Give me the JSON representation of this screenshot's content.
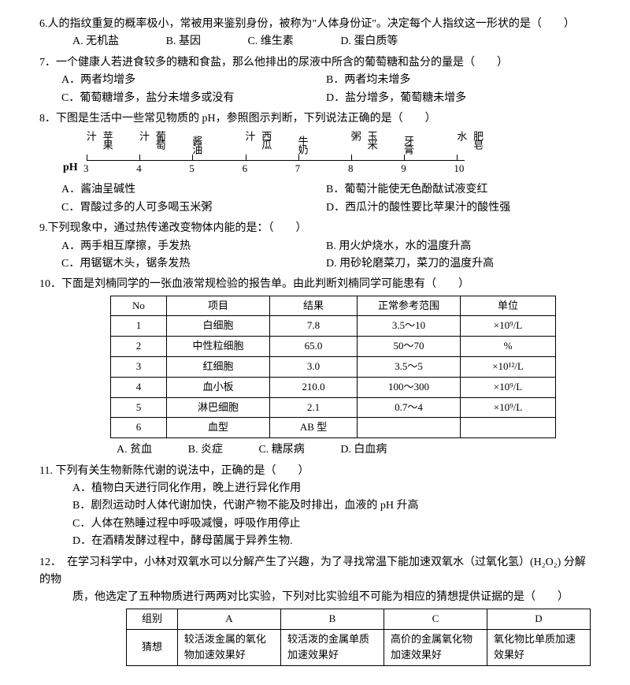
{
  "q6": {
    "text": "6.人的指纹重复的概率极小，常被用来鉴别身份，被称为\"人体身份证\"。决定每个人指纹这一形状的是（　　）",
    "optA": "A. 无机盐",
    "optB": "B. 基因",
    "optC": "C. 维生素",
    "optD": "D. 蛋白质等"
  },
  "q7": {
    "text": "7．一个健康人若进食较多的糖和食盐，那么他排出的尿液中所含的葡萄糖和盐分的量是（　　）",
    "optA": "A．两者均增多",
    "optB": "B．两者均未增多",
    "optC": "C．葡萄糖增多，盐分未增多或没有",
    "optD": "D．盐分增多，葡萄糖未增多"
  },
  "q8": {
    "text": "8．下图是生活中一些常见物质的 pH，参照图示判断，下列说法正确的是（　　）",
    "ph_left": "pH",
    "scale": {
      "items": [
        {
          "label": "苹果汁",
          "num": "3",
          "x_pct": 0
        },
        {
          "label": "葡萄汁",
          "num": "4",
          "x_pct": 14
        },
        {
          "label": "酱油",
          "num": "5",
          "x_pct": 28
        },
        {
          "label": "西瓜汁",
          "num": "6",
          "x_pct": 42
        },
        {
          "label": "牛奶",
          "num": "7",
          "x_pct": 56
        },
        {
          "label": "玉米粥",
          "num": "8",
          "x_pct": 70
        },
        {
          "label": "牙膏",
          "num": "9",
          "x_pct": 84
        },
        {
          "label": "肥皂水",
          "num": "10",
          "x_pct": 98
        }
      ],
      "label_color": "#000000",
      "line_color": "#000000"
    },
    "optA": "A．酱油呈碱性",
    "optB": "B．葡萄汁能使无色酚酞试液变红",
    "optC": "C．胃酸过多的人可多喝玉米粥",
    "optD": "D．西瓜汁的酸性要比苹果汁的酸性强"
  },
  "q9": {
    "text": "9.下列现象中，通过热传递改变物体内能的是：（　　）",
    "optA": "A．两手相互摩擦，手发热",
    "optB": "B. 用火炉烧水，水的温度升高",
    "optC": "C．用锯锯木头，锯条发热",
    "optD": "D. 用砂轮磨菜刀，菜刀的温度升高"
  },
  "q10": {
    "text": "10．下面是刘楠同学的一张血液常规检验的报告单。由此判断刘楠同学可能患有（　　）",
    "table": {
      "headers": [
        "No",
        "项目",
        "结果",
        "正常参考范围",
        "单位"
      ],
      "rows": [
        [
          "1",
          "白细胞",
          "7.8",
          "3.5～10",
          "×10⁹/L"
        ],
        [
          "2",
          "中性粒细胞",
          "65.0",
          "50～70",
          "%"
        ],
        [
          "3",
          "红细胞",
          "3.0",
          "3.5～5",
          "×10¹²/L"
        ],
        [
          "4",
          "血小板",
          "210.0",
          "100～300",
          "×10⁹/L"
        ],
        [
          "5",
          "淋巴细胞",
          "2.1",
          "0.7～4",
          "×10⁹/L"
        ],
        [
          "6",
          "血型",
          "AB 型",
          "",
          ""
        ]
      ]
    },
    "optA": "A. 贫血",
    "optB": "B. 炎症",
    "optC": "C. 糖尿病",
    "optD": "D. 白血病"
  },
  "q11": {
    "text": "11. 下列有关生物新陈代谢的说法中，正确的是（　　）",
    "optA": "A．植物白天进行同化作用，晚上进行异化作用",
    "optB": "B．剧烈运动时人体代谢加快，代谢产物不能及时排出，血液的 pH 升高",
    "optC": "C．人体在熟睡过程中呼吸减慢，呼吸作用停止",
    "optD": "D．在酒精发酵过程中，酵母菌属于异养生物."
  },
  "q12": {
    "text": "12．　在学习科学中，小林对双氧水可以分解产生了兴趣，为了寻找常温下能加速双氧水（过氧化氢）(H₂O₂) 分解的物",
    "text2": "质，他选定了五种物质进行两两对比实验，下列对比实验组不可能为相应的猜想提供证据的是（　　）",
    "table": {
      "header_grp": "组别",
      "headers": [
        "A",
        "B",
        "C",
        "D"
      ],
      "row_label": "猜想",
      "cells": [
        "较活泼金属的氧化物加速效果好",
        "较活泼的金属单质加速效果好",
        "高价的金属氧化物加速效果好",
        "氧化物比单质加速效果好"
      ]
    }
  }
}
